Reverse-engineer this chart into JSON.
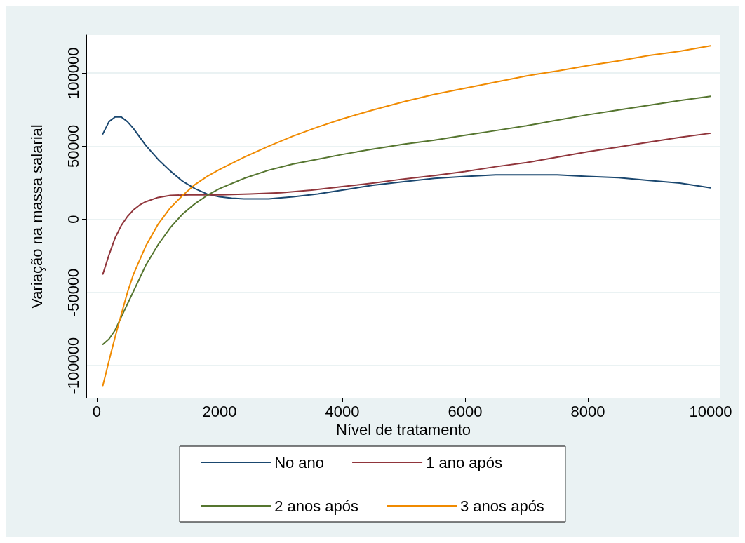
{
  "chart_data": {
    "type": "line",
    "xlabel": "Nível de tratamento",
    "ylabel": "Variação na massa salarial",
    "xlim": [
      -170,
      10160
    ],
    "ylim": [
      -122000,
      126000
    ],
    "xticks": [
      0,
      2000,
      4000,
      6000,
      8000,
      10000
    ],
    "yticks": [
      -100000,
      -50000,
      0,
      50000,
      100000
    ],
    "grid": "y",
    "legend": "bottom",
    "marker": "none",
    "line_style": "solid",
    "series": [
      {
        "name": "No ano",
        "color": "#1a476f",
        "x": [
          100,
          200,
          300,
          400,
          500,
          600,
          800,
          1000,
          1200,
          1400,
          1600,
          1800,
          2000,
          2200,
          2400,
          2800,
          3200,
          3600,
          4000,
          4500,
          5000,
          5500,
          6000,
          6500,
          7000,
          7500,
          8000,
          8500,
          9000,
          9500,
          10000
        ],
        "values": [
          58400,
          66800,
          70000,
          70000,
          66800,
          62000,
          50500,
          41000,
          33000,
          26000,
          21000,
          17300,
          15400,
          14500,
          14000,
          14000,
          15400,
          17300,
          20000,
          23400,
          25700,
          28000,
          29400,
          30400,
          30400,
          30400,
          29400,
          28500,
          26600,
          24800,
          21500
        ]
      },
      {
        "name": "1 ano após",
        "color": "#90353b",
        "x": [
          100,
          200,
          300,
          400,
          500,
          600,
          700,
          800,
          1000,
          1200,
          1500,
          2000,
          2500,
          3000,
          3500,
          4000,
          4500,
          5000,
          5500,
          6000,
          6500,
          7000,
          7500,
          8000,
          8500,
          9000,
          9500,
          10000
        ],
        "values": [
          -37400,
          -24300,
          -12600,
          -4200,
          1900,
          6500,
          9800,
          12100,
          15000,
          16400,
          16800,
          16800,
          17300,
          18200,
          20000,
          22400,
          24800,
          27600,
          29900,
          32700,
          36000,
          38800,
          42500,
          46300,
          49500,
          52800,
          56100,
          58900
        ]
      },
      {
        "name": "2 anos após",
        "color": "#55752f",
        "x": [
          100,
          200,
          300,
          400,
          600,
          800,
          1000,
          1200,
          1400,
          1600,
          1800,
          2000,
          2400,
          2800,
          3200,
          3600,
          4000,
          4500,
          5000,
          5500,
          6000,
          6500,
          7000,
          7500,
          8000,
          8500,
          9000,
          9500,
          10000
        ],
        "values": [
          -85500,
          -81800,
          -75700,
          -66800,
          -49100,
          -31300,
          -17300,
          -5600,
          3700,
          10700,
          16400,
          21000,
          28000,
          33600,
          37900,
          41100,
          44400,
          48100,
          51400,
          54200,
          57500,
          60700,
          64000,
          67800,
          71500,
          74800,
          78000,
          81300,
          84100
        ]
      },
      {
        "name": "3 anos após",
        "color": "#f08a00",
        "x": [
          100,
          200,
          300,
          400,
          500,
          600,
          800,
          1000,
          1200,
          1400,
          1600,
          1800,
          2000,
          2400,
          2800,
          3200,
          3600,
          4000,
          4500,
          5000,
          5500,
          6000,
          6500,
          7000,
          7500,
          8000,
          8500,
          9000,
          9500,
          10000
        ],
        "values": [
          -113600,
          -96700,
          -80400,
          -65000,
          -50000,
          -37400,
          -18200,
          -3300,
          7900,
          16400,
          23800,
          29400,
          34100,
          42500,
          50000,
          57000,
          63100,
          68700,
          74800,
          80400,
          85500,
          89700,
          93900,
          98100,
          101400,
          105100,
          108400,
          112100,
          115000,
          118700
        ]
      }
    ]
  }
}
